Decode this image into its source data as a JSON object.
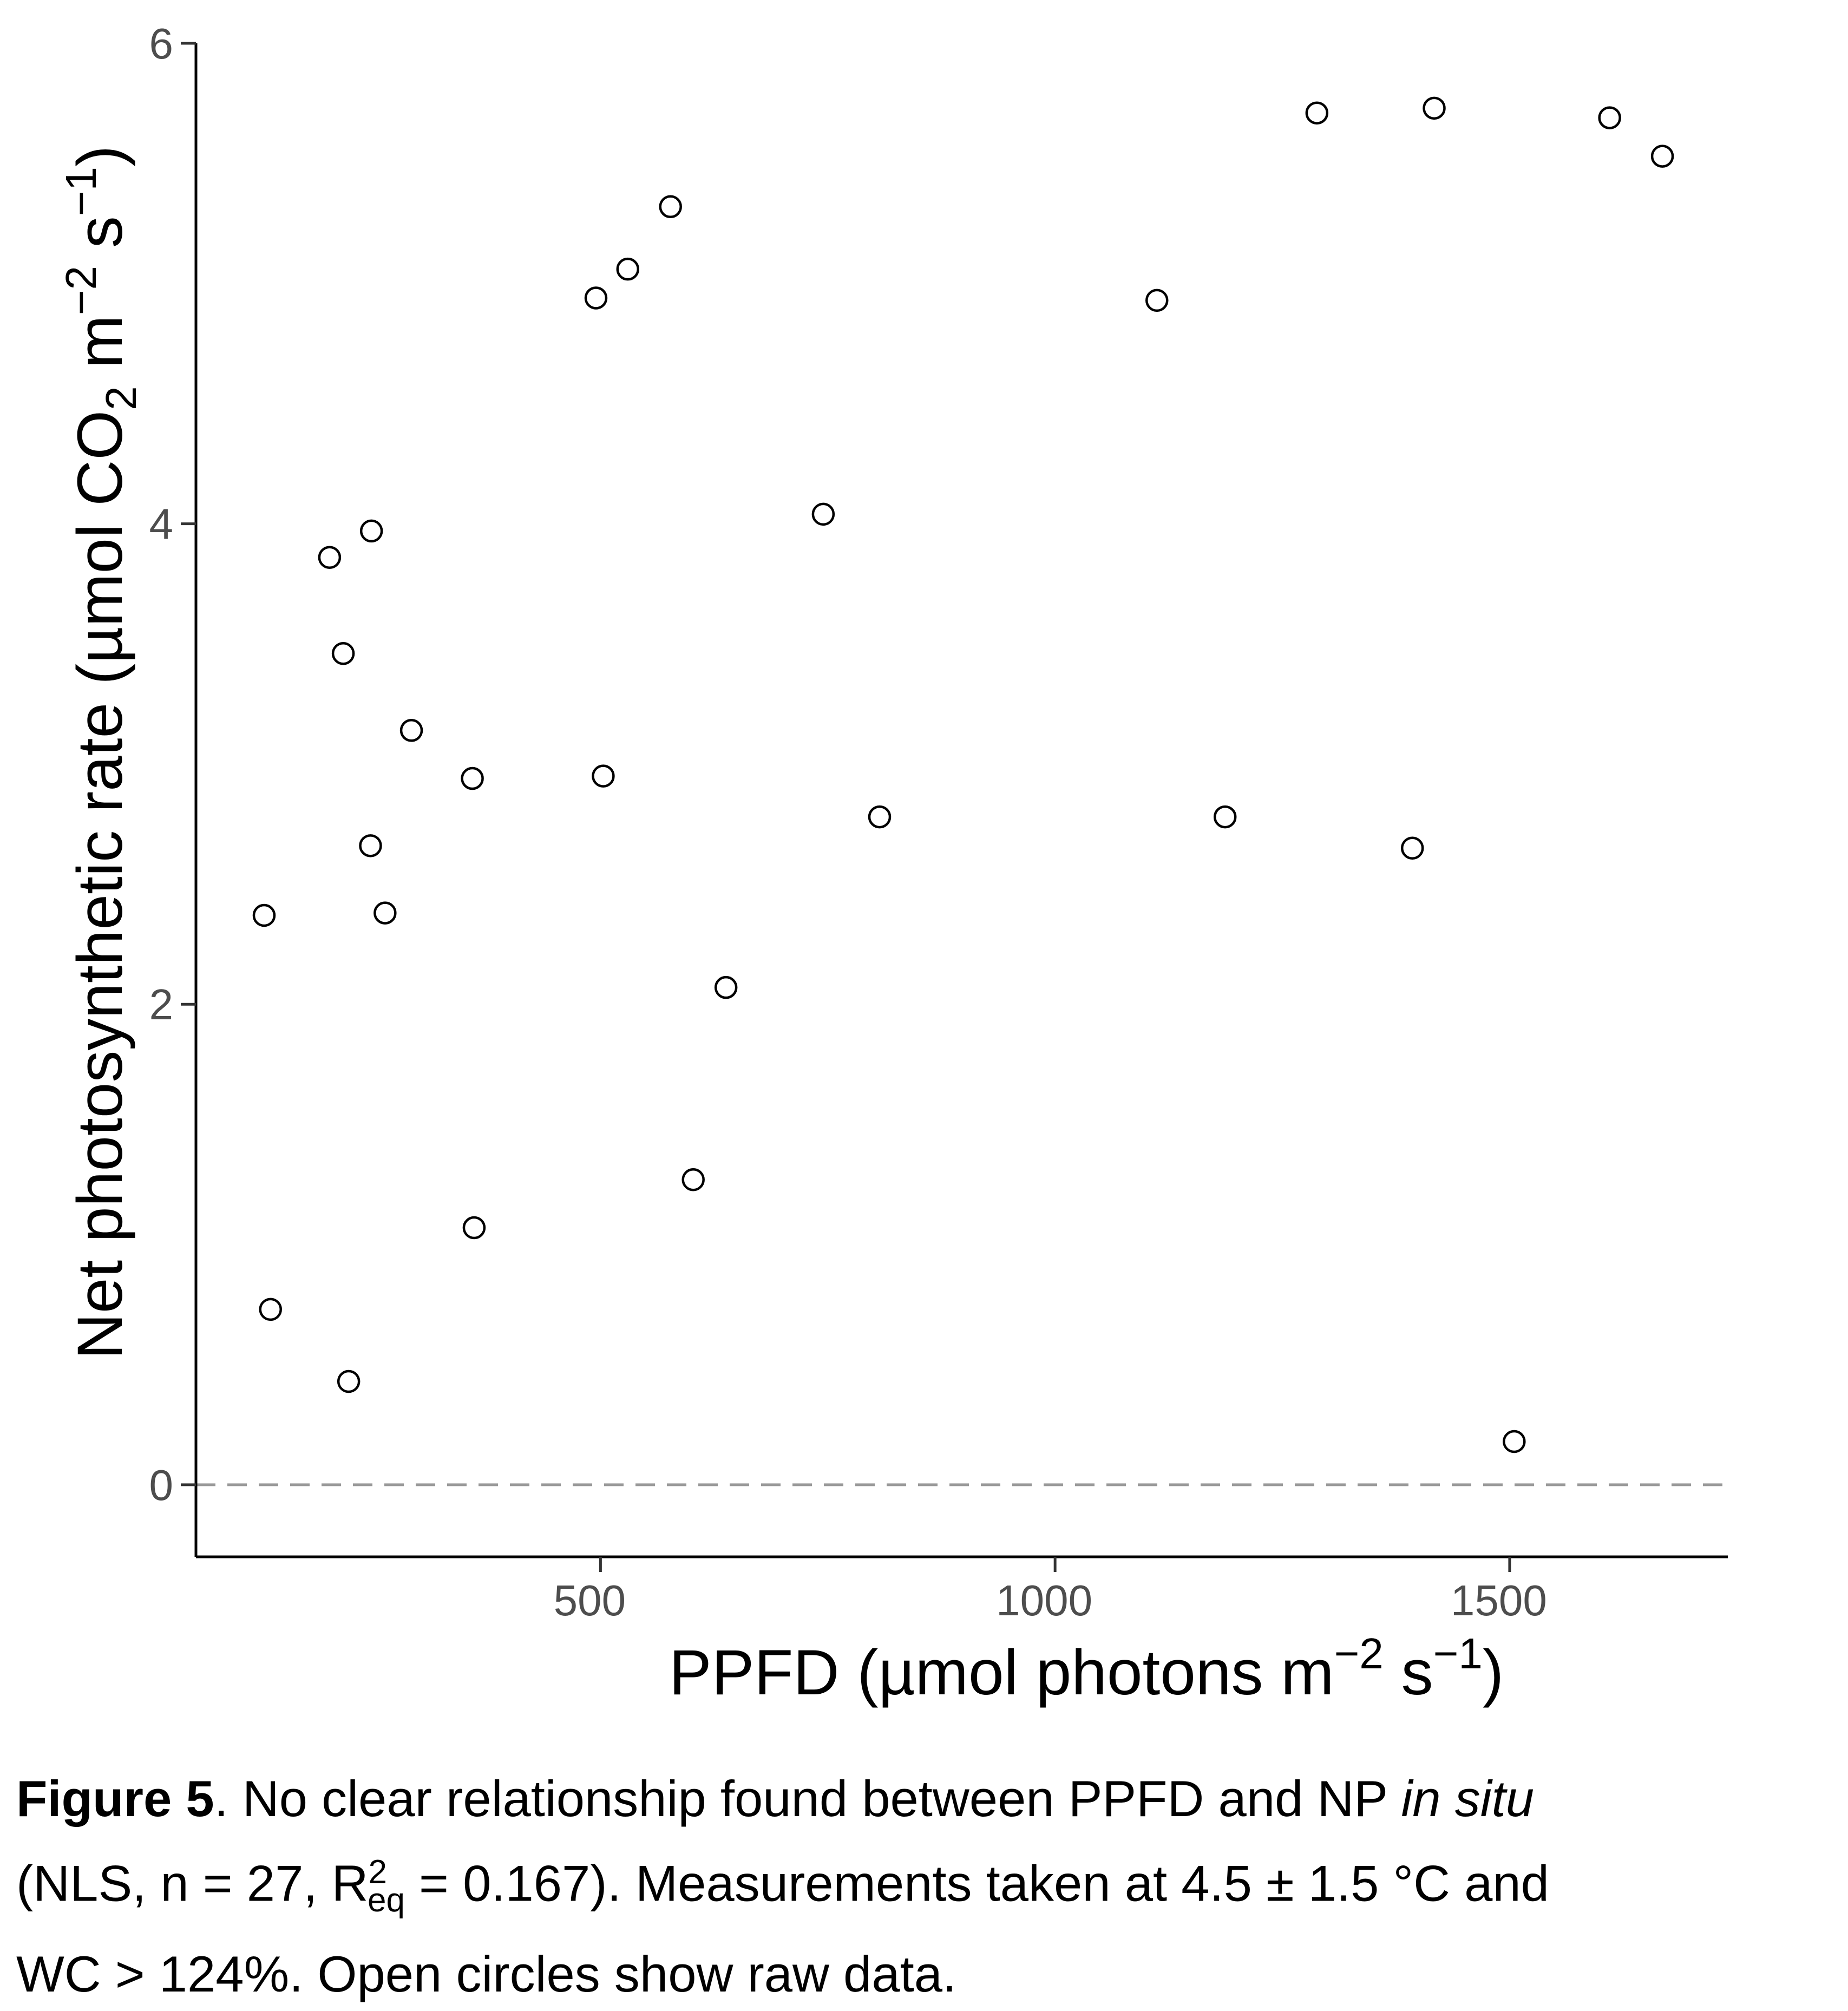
{
  "chart_data": {
    "type": "scatter",
    "title": "",
    "xlabel": "PPFD (µmol photons m",
    "xlabel_sup1": "−2",
    "xlabel_mid": " s",
    "xlabel_sup2": "−1",
    "xlabel_end": ")",
    "ylabel": "Net photosynthetic rate (µmol CO",
    "ylabel_sub": "2",
    "ylabel_mid": " m",
    "ylabel_sup1": "−2",
    "ylabel_mid2": " s",
    "ylabel_sup2": "−1",
    "ylabel_end": ")",
    "xlim": [
      55,
      1740
    ],
    "ylim": [
      -0.3,
      6.0
    ],
    "xticks": [
      500,
      1000,
      1500
    ],
    "xtick_labels": [
      "500",
      "1000",
      "1500"
    ],
    "yticks": [
      0,
      2,
      4,
      6
    ],
    "ytick_labels": [
      "0",
      "2",
      "4",
      "6"
    ],
    "reference_line": {
      "y": 0,
      "style": "dashed",
      "color": "#999999"
    },
    "marker": "open-circle",
    "grid": false,
    "points": [
      {
        "x": 130,
        "y": 2.37
      },
      {
        "x": 137,
        "y": 0.73
      },
      {
        "x": 202,
        "y": 3.86
      },
      {
        "x": 217,
        "y": 3.46
      },
      {
        "x": 223,
        "y": 0.43
      },
      {
        "x": 248,
        "y": 3.97
      },
      {
        "x": 247,
        "y": 2.66
      },
      {
        "x": 263,
        "y": 2.38
      },
      {
        "x": 292,
        "y": 3.14
      },
      {
        "x": 359,
        "y": 2.94
      },
      {
        "x": 361,
        "y": 1.07
      },
      {
        "x": 495,
        "y": 4.94
      },
      {
        "x": 503,
        "y": 2.95
      },
      {
        "x": 530,
        "y": 5.06
      },
      {
        "x": 577,
        "y": 5.32
      },
      {
        "x": 602,
        "y": 1.27
      },
      {
        "x": 638,
        "y": 2.07
      },
      {
        "x": 745,
        "y": 4.04
      },
      {
        "x": 807,
        "y": 2.78
      },
      {
        "x": 1112,
        "y": 4.93
      },
      {
        "x": 1187,
        "y": 2.78
      },
      {
        "x": 1288,
        "y": 5.71
      },
      {
        "x": 1393,
        "y": 2.65
      },
      {
        "x": 1417,
        "y": 5.73
      },
      {
        "x": 1505,
        "y": 0.18
      },
      {
        "x": 1610,
        "y": 5.69
      },
      {
        "x": 1668,
        "y": 5.53
      }
    ]
  },
  "caption": {
    "label": "Figure 5",
    "line1_text": ". No clear relationship found between PPFD and NP ",
    "line1_italic": "in situ",
    "line2_start": "(NLS, n = 27, R",
    "line2_sup": "2",
    "line2_sub": "eq",
    "line2_end": " = 0.167). Measurements taken at 4.5 ± 1.5 °C  and",
    "line3": "WC > 124%. Open circles show raw data."
  }
}
